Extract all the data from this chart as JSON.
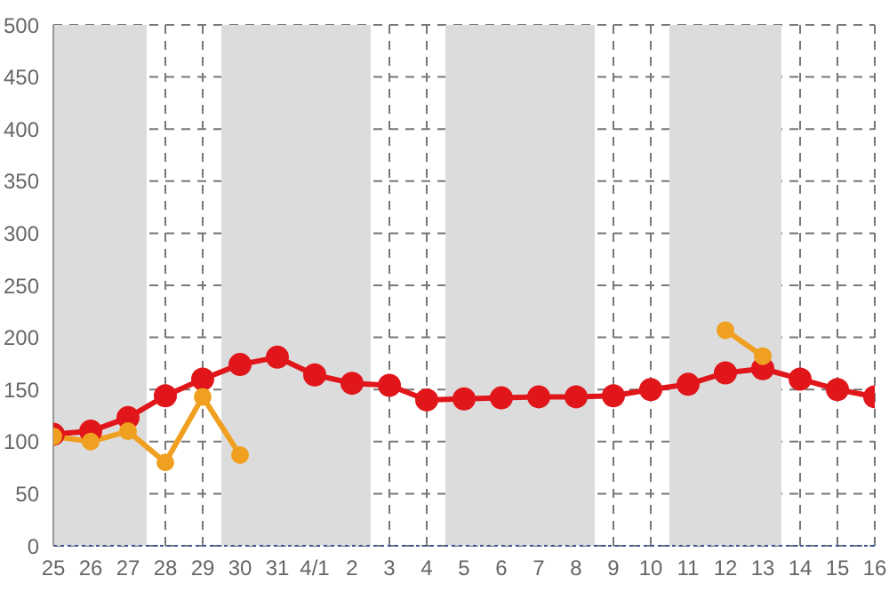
{
  "chart_data": {
    "type": "line",
    "categories": [
      "25",
      "26",
      "27",
      "28",
      "29",
      "30",
      "31",
      "4/1",
      "2",
      "3",
      "4",
      "5",
      "6",
      "7",
      "8",
      "9",
      "10",
      "11",
      "12",
      "13",
      "14",
      "15",
      "16"
    ],
    "series": [
      {
        "color": "#e0161a",
        "values": [
          107,
          110,
          123,
          144,
          160,
          174,
          181,
          164,
          156,
          154,
          140,
          141,
          142,
          143,
          143,
          144,
          150,
          155,
          166,
          170,
          160,
          150,
          143
        ]
      },
      {
        "color": "#f0a020",
        "values": [
          105,
          100,
          110,
          80,
          143,
          87,
          null,
          null,
          null,
          null,
          null,
          null,
          null,
          null,
          null,
          null,
          null,
          null,
          207,
          182,
          null,
          null,
          null
        ]
      }
    ],
    "ylim": [
      0,
      500
    ],
    "yticks": [
      0,
      50,
      100,
      150,
      200,
      250,
      300,
      350,
      400,
      450,
      500
    ],
    "bands": [
      {
        "axis": "x",
        "from": "25",
        "to": "27",
        "color": "#dcdcdc"
      },
      {
        "axis": "x",
        "from": "30",
        "to": "2",
        "color": "#dcdcdc"
      },
      {
        "axis": "x",
        "from": "5",
        "to": "8",
        "color": "#dcdcdc"
      },
      {
        "axis": "x",
        "from": "11",
        "to": "13",
        "color": "#dcdcdc"
      }
    ],
    "grid": true,
    "marker": "circle",
    "line_style": "solid"
  }
}
